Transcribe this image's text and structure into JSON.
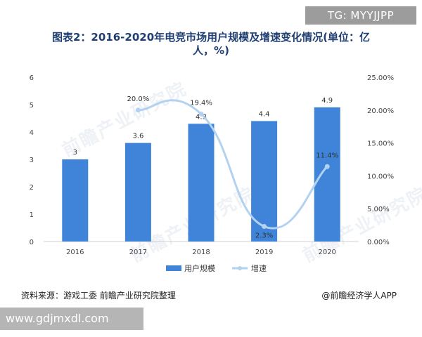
{
  "badge": "TG: MYYJJPP",
  "site": "www.gdjmxdl.com",
  "watermark": "前瞻产业研究院",
  "source": "资料来源：游戏工委 前瞻产业研究院整理",
  "credit": "@前瞻经济学人APP",
  "colors": {
    "bar": "#3f84d8",
    "line": "#b3d2ef",
    "title": "#1f3f73"
  },
  "chart_data": {
    "type": "bar",
    "title": "图表2：2016-2020年电竞市场用户规模及增速变化情况(单位：亿人，%)",
    "categories": [
      "2016",
      "2017",
      "2018",
      "2019",
      "2020"
    ],
    "series": [
      {
        "name": "用户规模",
        "type": "bar",
        "axis": "left",
        "values": [
          3,
          3.6,
          4.3,
          4.4,
          4.9
        ],
        "labels": [
          "3",
          "3.6",
          "4.3",
          "4.4",
          "4.9"
        ]
      },
      {
        "name": "增速",
        "type": "line",
        "axis": "right",
        "values": [
          null,
          20.0,
          19.4,
          2.3,
          11.4
        ],
        "labels": [
          "",
          "20.0%",
          "19.4%",
          "2.3%",
          "11.4%"
        ]
      }
    ],
    "ylim_left": [
      0,
      6
    ],
    "yticks_left": [
      "0",
      "1",
      "2",
      "3",
      "4",
      "5",
      "6"
    ],
    "ylim_right": [
      0,
      25
    ],
    "yticks_right": [
      "0.00%",
      "5.00%",
      "10.00%",
      "15.00%",
      "20.00%",
      "25.00%"
    ],
    "legend_position": "bottom",
    "grid": false
  }
}
